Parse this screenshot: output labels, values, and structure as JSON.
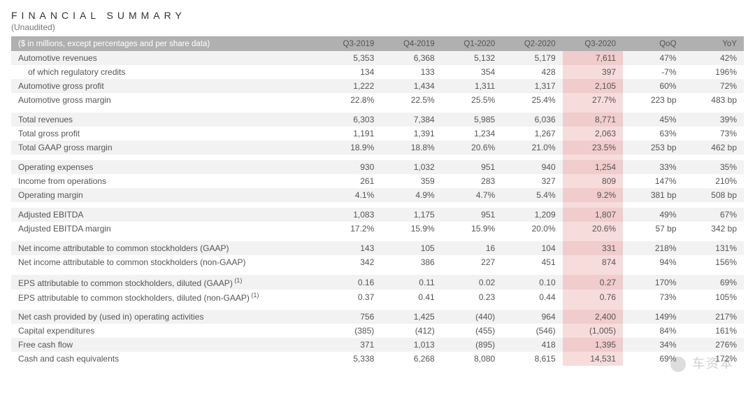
{
  "title": "FINANCIAL SUMMARY",
  "subtitle": "(Unaudited)",
  "header_label": "($ in millions, except percentages and per share data)",
  "columns": [
    "Q3-2019",
    "Q4-2019",
    "Q1-2020",
    "Q2-2020",
    "Q3-2020",
    "QoQ",
    "YoY"
  ],
  "highlight_col_index": 4,
  "colors": {
    "header_bg": "#b0b0b0",
    "header_text": "#ffffff",
    "row_alt_bg": "#f2f2f2",
    "highlight_bg": "#f7dcdc",
    "highlight_alt_bg": "#f0cccc",
    "text": "#555555"
  },
  "rows": [
    {
      "label": "Automotive revenues",
      "indent": false,
      "cells": [
        "5,353",
        "6,368",
        "5,132",
        "5,179",
        "7,611",
        "47%",
        "42%"
      ],
      "alt": true
    },
    {
      "label": "of which regulatory credits",
      "indent": true,
      "cells": [
        "134",
        "133",
        "354",
        "428",
        "397",
        "-7%",
        "196%"
      ],
      "alt": false
    },
    {
      "label": "Automotive gross profit",
      "indent": false,
      "cells": [
        "1,222",
        "1,434",
        "1,311",
        "1,317",
        "2,105",
        "60%",
        "72%"
      ],
      "alt": true
    },
    {
      "label": "Automotive gross margin",
      "indent": false,
      "cells": [
        "22.8%",
        "22.5%",
        "25.5%",
        "25.4%",
        "27.7%",
        "223 bp",
        "483 bp"
      ],
      "alt": false
    },
    {
      "spacer": true
    },
    {
      "label": "Total revenues",
      "indent": false,
      "cells": [
        "6,303",
        "7,384",
        "5,985",
        "6,036",
        "8,771",
        "45%",
        "39%"
      ],
      "alt": true
    },
    {
      "label": "Total gross profit",
      "indent": false,
      "cells": [
        "1,191",
        "1,391",
        "1,234",
        "1,267",
        "2,063",
        "63%",
        "73%"
      ],
      "alt": false
    },
    {
      "label": "Total GAAP gross margin",
      "indent": false,
      "cells": [
        "18.9%",
        "18.8%",
        "20.6%",
        "21.0%",
        "23.5%",
        "253 bp",
        "462 bp"
      ],
      "alt": true
    },
    {
      "spacer": true
    },
    {
      "label": "Operating expenses",
      "indent": false,
      "cells": [
        "930",
        "1,032",
        "951",
        "940",
        "1,254",
        "33%",
        "35%"
      ],
      "alt": true
    },
    {
      "label": "Income from operations",
      "indent": false,
      "cells": [
        "261",
        "359",
        "283",
        "327",
        "809",
        "147%",
        "210%"
      ],
      "alt": false
    },
    {
      "label": "Operating margin",
      "indent": false,
      "cells": [
        "4.1%",
        "4.9%",
        "4.7%",
        "5.4%",
        "9.2%",
        "381 bp",
        "508 bp"
      ],
      "alt": true
    },
    {
      "spacer": true
    },
    {
      "label": "Adjusted EBITDA",
      "indent": false,
      "cells": [
        "1,083",
        "1,175",
        "951",
        "1,209",
        "1,807",
        "49%",
        "67%"
      ],
      "alt": true
    },
    {
      "label": "Adjusted EBITDA margin",
      "indent": false,
      "cells": [
        "17.2%",
        "15.9%",
        "15.9%",
        "20.0%",
        "20.6%",
        "57 bp",
        "342 bp"
      ],
      "alt": false
    },
    {
      "spacer": true
    },
    {
      "label": "Net income attributable to common stockholders (GAAP)",
      "indent": false,
      "cells": [
        "143",
        "105",
        "16",
        "104",
        "331",
        "218%",
        "131%"
      ],
      "alt": true
    },
    {
      "label": "Net income attributable to common stockholders (non-GAAP)",
      "indent": false,
      "cells": [
        "342",
        "386",
        "227",
        "451",
        "874",
        "94%",
        "156%"
      ],
      "alt": false
    },
    {
      "spacer": true
    },
    {
      "label": "EPS attributable to common stockholders, diluted (GAAP)",
      "sup": "(1)",
      "indent": false,
      "cells": [
        "0.16",
        "0.11",
        "0.02",
        "0.10",
        "0.27",
        "170%",
        "69%"
      ],
      "alt": true
    },
    {
      "label": "EPS attributable to common stockholders, diluted (non-GAAP)",
      "sup": "(1)",
      "indent": false,
      "cells": [
        "0.37",
        "0.41",
        "0.23",
        "0.44",
        "0.76",
        "73%",
        "105%"
      ],
      "alt": false
    },
    {
      "spacer": true
    },
    {
      "label": "Net cash provided by (used in) operating activities",
      "indent": false,
      "cells": [
        "756",
        "1,425",
        "(440)",
        "964",
        "2,400",
        "149%",
        "217%"
      ],
      "alt": true
    },
    {
      "label": "Capital expenditures",
      "indent": false,
      "cells": [
        "(385)",
        "(412)",
        "(455)",
        "(546)",
        "(1,005)",
        "84%",
        "161%"
      ],
      "alt": false
    },
    {
      "label": "Free cash flow",
      "indent": false,
      "cells": [
        "371",
        "1,013",
        "(895)",
        "418",
        "1,395",
        "34%",
        "276%"
      ],
      "alt": true
    },
    {
      "label": "Cash and cash equivalents",
      "indent": false,
      "cells": [
        "5,338",
        "6,268",
        "8,080",
        "8,615",
        "14,531",
        "69%",
        "172%"
      ],
      "alt": false
    }
  ],
  "watermark": "车资本"
}
